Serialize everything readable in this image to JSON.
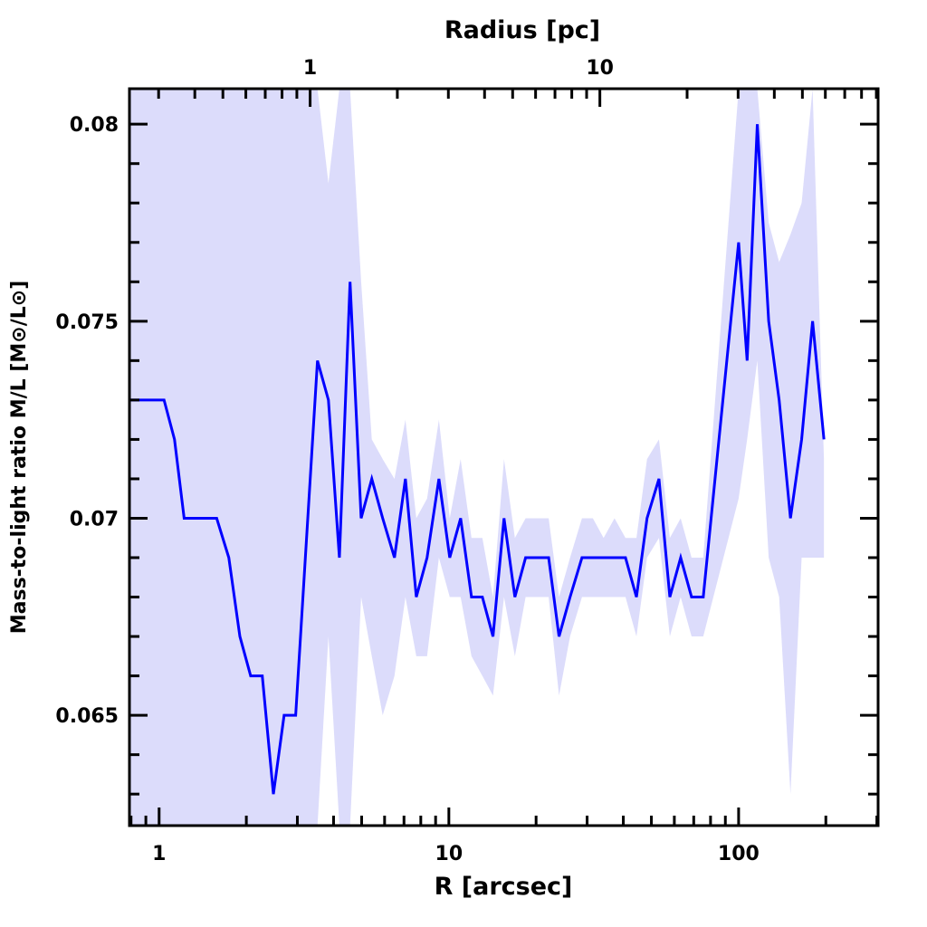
{
  "chart_data": {
    "type": "line",
    "title": "",
    "xlabel": "R [arcsec]",
    "ylabel": "Mass-to-light ratio M/L [M⊙/L⊙]",
    "top_xlabel": "Radius [pc]",
    "xscale": "log",
    "xlim": [
      0.79,
      303
    ],
    "ylim": [
      0.0622,
      0.0809
    ],
    "arcsec_per_pc": 3.32,
    "x_ticks": [
      {
        "value": 1,
        "label": "1"
      },
      {
        "value": 10,
        "label": "10"
      },
      {
        "value": 100,
        "label": "100"
      }
    ],
    "top_ticks_pc": [
      {
        "value": 1,
        "label": "1"
      },
      {
        "value": 10,
        "label": "10"
      }
    ],
    "y_ticks": [
      {
        "value": 0.065,
        "label": "0.065"
      },
      {
        "value": 0.07,
        "label": "0.07"
      },
      {
        "value": 0.075,
        "label": "0.075"
      },
      {
        "value": 0.08,
        "label": "0.08"
      }
    ],
    "y_minor_step": 0.001,
    "colors": {
      "line": "#0000ff",
      "band": "#dcdcfb"
    },
    "series": [
      {
        "name": "M/L",
        "x": [
          0.79,
          1.04,
          1.13,
          1.22,
          1.33,
          1.45,
          1.58,
          1.74,
          1.9,
          2.07,
          2.27,
          2.48,
          2.7,
          2.96,
          3.52,
          3.84,
          4.19,
          4.56,
          4.98,
          5.42,
          5.91,
          6.49,
          7.08,
          7.72,
          8.41,
          9.24,
          10.07,
          10.98,
          11.97,
          13.05,
          14.2,
          15.5,
          16.9,
          18.4,
          20.1,
          22.1,
          24.0,
          26.2,
          28.8,
          31.4,
          34.2,
          37.3,
          40.7,
          44.4,
          48.3,
          53.1,
          57.9,
          63.1,
          68.8,
          75.5,
          100,
          107,
          116,
          127,
          138,
          151,
          165,
          180,
          197
        ],
        "y": [
          0.073,
          0.073,
          0.072,
          0.07,
          0.07,
          0.07,
          0.07,
          0.069,
          0.067,
          0.066,
          0.066,
          0.063,
          0.065,
          0.065,
          0.074,
          0.073,
          0.069,
          0.076,
          0.07,
          0.071,
          0.07,
          0.069,
          0.071,
          0.068,
          0.069,
          0.071,
          0.069,
          0.07,
          0.068,
          0.068,
          0.067,
          0.07,
          0.068,
          0.069,
          0.069,
          0.069,
          0.067,
          0.068,
          0.069,
          0.069,
          0.069,
          0.069,
          0.069,
          0.068,
          0.07,
          0.071,
          0.068,
          0.069,
          0.068,
          0.068,
          0.077,
          0.074,
          0.08,
          0.075,
          0.073,
          0.07,
          0.072,
          0.075,
          0.072
        ],
        "lower": [
          0.05,
          0.05,
          0.05,
          0.05,
          0.05,
          0.05,
          0.05,
          0.05,
          0.05,
          0.05,
          0.05,
          0.05,
          0.05,
          0.05,
          0.05,
          0.067,
          0.05,
          0.06,
          0.068,
          0.0665,
          0.065,
          0.066,
          0.068,
          0.0665,
          0.0665,
          0.069,
          0.068,
          0.068,
          0.0665,
          0.066,
          0.0655,
          0.068,
          0.0665,
          0.068,
          0.068,
          0.068,
          0.0655,
          0.067,
          0.068,
          0.068,
          0.068,
          0.068,
          0.068,
          0.067,
          0.069,
          0.0695,
          0.067,
          0.068,
          0.067,
          0.067,
          0.0705,
          0.072,
          0.074,
          0.069,
          0.068,
          0.063,
          0.069,
          0.069,
          0.069
        ],
        "upper": [
          0.09,
          0.09,
          0.09,
          0.09,
          0.09,
          0.09,
          0.09,
          0.09,
          0.09,
          0.09,
          0.09,
          0.09,
          0.09,
          0.09,
          0.09,
          0.0785,
          0.09,
          0.09,
          0.076,
          0.072,
          0.0715,
          0.071,
          0.0725,
          0.07,
          0.0705,
          0.0725,
          0.07,
          0.0715,
          0.0695,
          0.0695,
          0.068,
          0.0715,
          0.0695,
          0.07,
          0.07,
          0.07,
          0.068,
          0.069,
          0.07,
          0.07,
          0.0695,
          0.07,
          0.0695,
          0.0695,
          0.0715,
          0.072,
          0.0695,
          0.07,
          0.069,
          0.069,
          0.09,
          0.081,
          0.09,
          0.0775,
          0.0765,
          0.0772,
          0.078,
          0.09,
          0.0715
        ]
      }
    ]
  }
}
